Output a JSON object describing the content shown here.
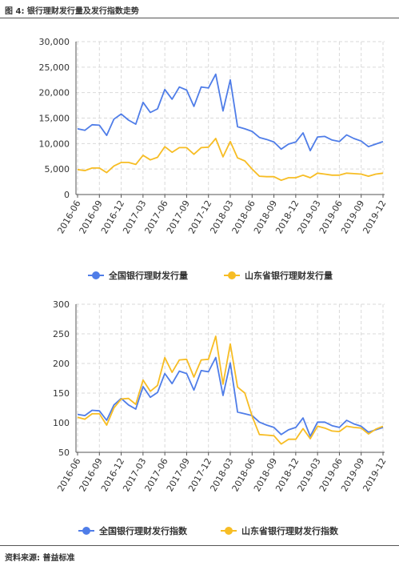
{
  "figure_title": "图 4:  银行理财发行量及发行指数走势",
  "source": "资料来源:  普益标准",
  "colors": {
    "blue": "#4f7de8",
    "orange": "#f7bd24",
    "grid": "#d9d9d9",
    "axis": "#555555"
  },
  "chart_data": [
    {
      "type": "line",
      "x_tick_labels": [
        "2016-06",
        "2016-09",
        "2016-12",
        "2017-03",
        "2017-06",
        "2017-09",
        "2017-12",
        "2018-03",
        "2018-06",
        "2018-09",
        "2018-12",
        "2019-03",
        "2019-06",
        "2019-09",
        "2019-12"
      ],
      "ylim": [
        0,
        30000
      ],
      "y_ticks": [
        "0",
        "5,000",
        "10,000",
        "15,000",
        "20,000",
        "25,000",
        "30,000"
      ],
      "y_tick_values": [
        0,
        5000,
        10000,
        15000,
        20000,
        25000,
        30000
      ],
      "grid": true,
      "legend_position": "bottom",
      "series": [
        {
          "name": "全国银行理财发行量",
          "color": "#4f7de8",
          "values": [
            12900,
            12600,
            13700,
            13600,
            11600,
            14800,
            15800,
            14600,
            13800,
            18100,
            16100,
            16800,
            20600,
            18700,
            21100,
            20500,
            17300,
            21100,
            20900,
            23600,
            16400,
            22500,
            13300,
            12900,
            12400,
            11200,
            10800,
            10300,
            8900,
            9900,
            10300,
            12100,
            8600,
            11300,
            11400,
            10700,
            10400,
            11700,
            11000,
            10500,
            9400,
            9900,
            10400
          ]
        },
        {
          "name": "山东省银行理财发行量",
          "color": "#f7bd24",
          "values": [
            4900,
            4700,
            5200,
            5200,
            4300,
            5600,
            6300,
            6300,
            5900,
            7700,
            6800,
            7300,
            9400,
            8300,
            9200,
            9200,
            7900,
            9200,
            9300,
            11000,
            7400,
            10400,
            7200,
            6600,
            5000,
            3600,
            3500,
            3500,
            2800,
            3300,
            3300,
            3800,
            3300,
            4200,
            4000,
            3800,
            3800,
            4200,
            4100,
            4000,
            3600,
            4000,
            4200
          ]
        }
      ]
    },
    {
      "type": "line",
      "x_tick_labels": [
        "2016-06",
        "2016-09",
        "2016-12",
        "2017-03",
        "2017-06",
        "2017-09",
        "2017-12",
        "2018-03",
        "2018-06",
        "2018-09",
        "2018-12",
        "2019-03",
        "2019-06",
        "2019-09",
        "2019-12"
      ],
      "ylim": [
        50,
        300
      ],
      "y_ticks": [
        "50",
        "100",
        "150",
        "200",
        "250",
        "300"
      ],
      "y_tick_values": [
        50,
        100,
        150,
        200,
        250,
        300
      ],
      "grid": true,
      "legend_position": "bottom",
      "series": [
        {
          "name": "全国银行理财发行指数",
          "color": "#4f7de8",
          "values": [
            114,
            112,
            121,
            120,
            104,
            130,
            141,
            130,
            123,
            161,
            143,
            151,
            183,
            166,
            187,
            183,
            155,
            188,
            186,
            210,
            146,
            201,
            118,
            115,
            112,
            101,
            96,
            92,
            80,
            88,
            92,
            108,
            77,
            101,
            101,
            95,
            92,
            104,
            98,
            94,
            84,
            88,
            92
          ]
        },
        {
          "name": "山东省银行理财发行指数",
          "color": "#f7bd24",
          "values": [
            109,
            106,
            115,
            115,
            96,
            125,
            140,
            141,
            131,
            172,
            153,
            163,
            210,
            185,
            206,
            207,
            177,
            206,
            207,
            246,
            165,
            233,
            160,
            150,
            111,
            80,
            79,
            78,
            64,
            72,
            72,
            90,
            73,
            94,
            91,
            86,
            85,
            94,
            92,
            91,
            81,
            89,
            94
          ]
        }
      ]
    }
  ]
}
